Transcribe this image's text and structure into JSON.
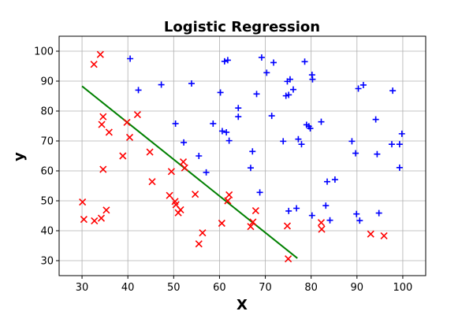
{
  "chart_data": {
    "type": "scatter",
    "title": "Logistic Regression",
    "xlabel": "X",
    "ylabel": "y",
    "xlim": [
      25,
      105
    ],
    "ylim": [
      25,
      105
    ],
    "xticks": [
      30,
      40,
      50,
      60,
      70,
      80,
      90,
      100
    ],
    "yticks": [
      30,
      40,
      50,
      60,
      70,
      80,
      90,
      100
    ],
    "grid": true,
    "colors": {
      "positive": "#0000ff",
      "negative": "#ff0000",
      "boundary": "#008000"
    },
    "series": [
      {
        "marker": "plus",
        "color": "#0000ff",
        "points": [
          [
            40.5,
            97.5
          ],
          [
            42.3,
            87
          ],
          [
            47.3,
            88.8
          ],
          [
            53.9,
            89.2
          ],
          [
            50.4,
            75.8
          ],
          [
            52.2,
            69.5
          ],
          [
            55.5,
            65
          ],
          [
            57.1,
            59.5
          ],
          [
            58.6,
            75.8
          ],
          [
            60.2,
            86.2
          ],
          [
            60.6,
            73.3
          ],
          [
            61.1,
            96.6
          ],
          [
            61.8,
            97
          ],
          [
            61.5,
            72.9
          ],
          [
            62.1,
            70.1
          ],
          [
            64.1,
            78.1
          ],
          [
            64.1,
            81
          ],
          [
            66.8,
            61
          ],
          [
            67.2,
            66.5
          ],
          [
            68.1,
            85.7
          ],
          [
            68.8,
            52.8
          ],
          [
            69.2,
            97.9
          ],
          [
            70.3,
            92.8
          ],
          [
            71.4,
            78.4
          ],
          [
            71.8,
            96.2
          ],
          [
            73.9,
            69.9
          ],
          [
            74.5,
            85.1
          ],
          [
            74.8,
            89.9
          ],
          [
            75.1,
            85.4
          ],
          [
            75.4,
            90.6
          ],
          [
            75.1,
            46.6
          ],
          [
            76.1,
            87.2
          ],
          [
            76.8,
            47.5
          ],
          [
            77.2,
            70.6
          ],
          [
            77.9,
            68.9
          ],
          [
            78.6,
            96.5
          ],
          [
            79,
            75.4
          ],
          [
            79.5,
            74.9
          ],
          [
            79.8,
            74.2
          ],
          [
            80.2,
            92.1
          ],
          [
            80.3,
            90.6
          ],
          [
            80.2,
            45.1
          ],
          [
            82.2,
            76.4
          ],
          [
            83.2,
            48.4
          ],
          [
            83.5,
            56.4
          ],
          [
            84.1,
            43.5
          ],
          [
            85.2,
            57.1
          ],
          [
            88.9,
            69.9
          ],
          [
            89.7,
            65.9
          ],
          [
            89.9,
            45.6
          ],
          [
            90.3,
            87.5
          ],
          [
            90.6,
            43.4
          ],
          [
            91.4,
            88.7
          ],
          [
            94.1,
            77.2
          ],
          [
            94.4,
            65.6
          ],
          [
            94.8,
            45.9
          ],
          [
            97.6,
            68.9
          ],
          [
            97.8,
            86.8
          ],
          [
            99.3,
            68.9
          ],
          [
            99.3,
            61.1
          ],
          [
            99.8,
            72.4
          ]
        ]
      },
      {
        "marker": "x",
        "color": "#ff0000",
        "points": [
          [
            30.1,
            49.6
          ],
          [
            30.4,
            43.8
          ],
          [
            32.6,
            95.6
          ],
          [
            32.7,
            43.3
          ],
          [
            34,
            98.9
          ],
          [
            34.2,
            44.2
          ],
          [
            34.3,
            75.5
          ],
          [
            34.6,
            60.5
          ],
          [
            34.6,
            78.1
          ],
          [
            35.3,
            46.9
          ],
          [
            35.9,
            72.9
          ],
          [
            38.9,
            65
          ],
          [
            39.8,
            76.2
          ],
          [
            40.4,
            71.2
          ],
          [
            42.1,
            78.8
          ],
          [
            44.8,
            66.3
          ],
          [
            45.3,
            56.4
          ],
          [
            49.1,
            51.8
          ],
          [
            49.5,
            59.8
          ],
          [
            50.3,
            49.8
          ],
          [
            50.5,
            48.7
          ],
          [
            51,
            46
          ],
          [
            51.5,
            47
          ],
          [
            52.1,
            63
          ],
          [
            52.4,
            61
          ],
          [
            54.7,
            52.2
          ],
          [
            55.5,
            35.6
          ],
          [
            56.3,
            39.3
          ],
          [
            60.5,
            42.5
          ],
          [
            61.8,
            50
          ],
          [
            62.1,
            52
          ],
          [
            66.8,
            41.4
          ],
          [
            67.3,
            42.9
          ],
          [
            67.9,
            46.7
          ],
          [
            74.8,
            41.6
          ],
          [
            75,
            30.6
          ],
          [
            82.2,
            42.7
          ],
          [
            82.3,
            40.5
          ],
          [
            93,
            38.9
          ],
          [
            95.9,
            38.3
          ]
        ]
      }
    ],
    "boundary_line": {
      "x": [
        30,
        77
      ],
      "y": [
        88.3,
        30.8
      ]
    }
  }
}
